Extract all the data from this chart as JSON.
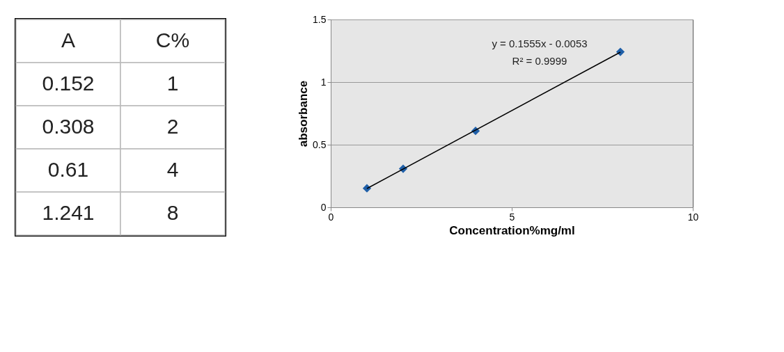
{
  "chart_data": [
    {
      "type": "other",
      "annotations": [
        "A",
        "C%",
        "0.152",
        "1",
        "0.308",
        "2",
        "0.61",
        "4",
        "1.241",
        "8"
      ]
    },
    {
      "type": "scatter",
      "xlabel": "Concentration%mg/ml",
      "ylabel": "absorbance",
      "series": [
        {
          "type": "scatter",
          "color": "#1f5fa8",
          "x": [
            1,
            2,
            4,
            8
          ],
          "values": [
            0.152,
            0.308,
            0.61,
            1.241
          ],
          "marker": "diamond"
        },
        {
          "type": "line",
          "color": "#000000",
          "x": [
            1,
            8
          ],
          "values": [
            0.15,
            1.239
          ]
        }
      ],
      "annotations": [
        "y = 0.1555x - 0.0053",
        "R² = 0.9999"
      ],
      "xlim": [
        0,
        10
      ],
      "xticks": [
        0,
        5,
        10
      ],
      "ylim": [
        0,
        1.5
      ],
      "yticks": [
        0,
        0.5,
        1,
        1.5
      ],
      "grid": "y"
    }
  ]
}
